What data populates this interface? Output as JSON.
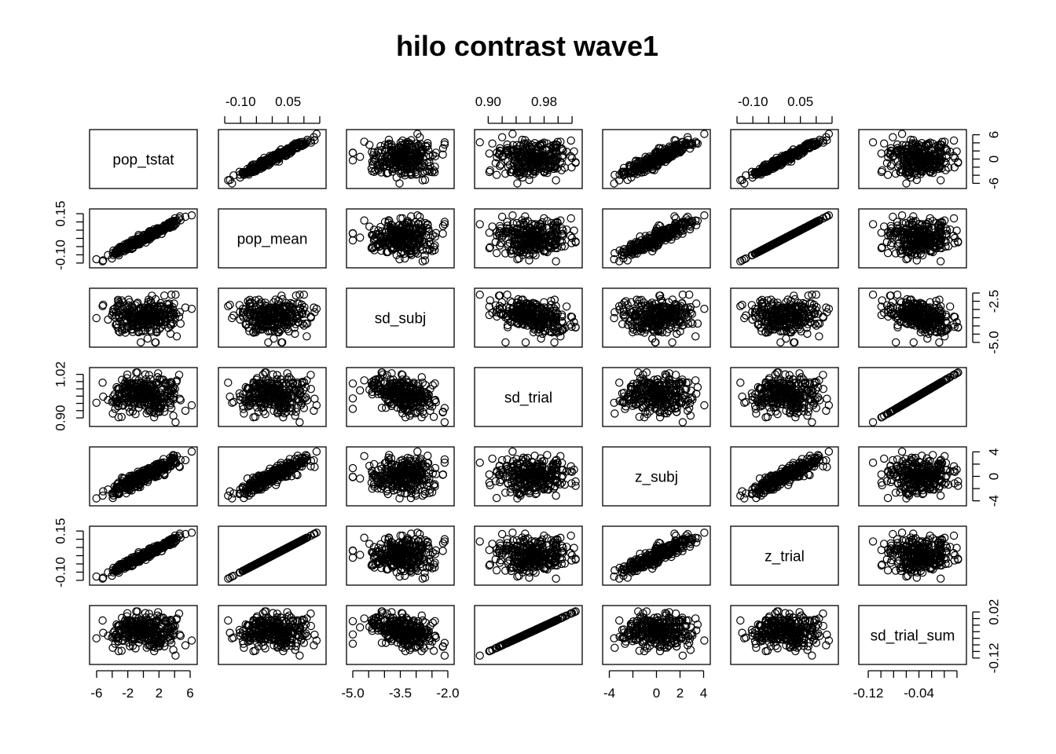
{
  "chart_data": {
    "type": "scatter",
    "title": "hilo contrast wave1",
    "variables": [
      {
        "name": "pop_tstat",
        "range": [
          -6.5,
          6.5
        ],
        "ticks": [
          -6,
          -4,
          -2,
          0,
          2,
          4,
          6
        ],
        "tick_labels": [
          "-6",
          "-2",
          "2",
          "6"
        ],
        "axis_tick_labels": [
          "-6",
          "0",
          "6"
        ]
      },
      {
        "name": "pop_mean",
        "range": [
          -0.16,
          0.16
        ],
        "ticks": [
          -0.15,
          -0.1,
          -0.05,
          0.0,
          0.05,
          0.1,
          0.15
        ],
        "tick_labels": [
          "-0.10",
          "0.05"
        ],
        "axis_tick_labels": [
          "-0.10",
          "0.15"
        ]
      },
      {
        "name": "sd_subj",
        "range": [
          -5.1,
          -1.9
        ],
        "ticks": [
          -5.0,
          -4.5,
          -4.0,
          -3.5,
          -3.0,
          -2.5,
          -2.0
        ],
        "tick_labels": [
          "-5.0",
          "-3.5",
          "-2.0"
        ],
        "axis_tick_labels": [
          "-5.0",
          "-2.5"
        ]
      },
      {
        "name": "sd_trial",
        "range": [
          0.885,
          1.03
        ],
        "ticks": [
          0.9,
          0.92,
          0.94,
          0.96,
          0.98,
          1.0,
          1.02
        ],
        "tick_labels": [
          "0.90",
          "0.98"
        ],
        "axis_tick_labels": [
          "0.90",
          "1.02"
        ]
      },
      {
        "name": "z_subj",
        "range": [
          -4.3,
          4.3
        ],
        "ticks": [
          -4,
          -2,
          0,
          2,
          4
        ],
        "tick_labels": [
          "-4",
          "0",
          "2",
          "4"
        ],
        "axis_tick_labels": [
          "-4",
          "0",
          "4"
        ]
      },
      {
        "name": "z_trial",
        "range": [
          -0.16,
          0.16
        ],
        "ticks": [
          -0.15,
          -0.1,
          -0.05,
          0.0,
          0.05,
          0.1,
          0.15
        ],
        "tick_labels": [
          "-0.10",
          "0.05"
        ],
        "axis_tick_labels": [
          "-0.10",
          "0.15"
        ]
      },
      {
        "name": "sd_trial_sum",
        "range": [
          -0.13,
          0.03
        ],
        "ticks": [
          -0.12,
          -0.1,
          -0.08,
          -0.06,
          -0.04,
          -0.02,
          0.0,
          0.02
        ],
        "tick_labels": [
          "-0.12",
          "-0.04"
        ],
        "axis_tick_labels": [
          "-0.12",
          "0.02"
        ]
      }
    ],
    "n_points": 300,
    "approx_correlations": {
      "pop_tstat~pop_mean": 0.98,
      "pop_tstat~z_subj": 0.93,
      "pop_tstat~z_trial": 0.98,
      "pop_mean~z_trial": 1.0,
      "pop_mean~z_subj": 0.88,
      "sd_trial~sd_trial_sum": 1.0,
      "sd_subj~sd_trial": -0.3,
      "sd_subj~pop_mean": 0.2
    },
    "marker": "open-circle",
    "color": "#000000"
  }
}
